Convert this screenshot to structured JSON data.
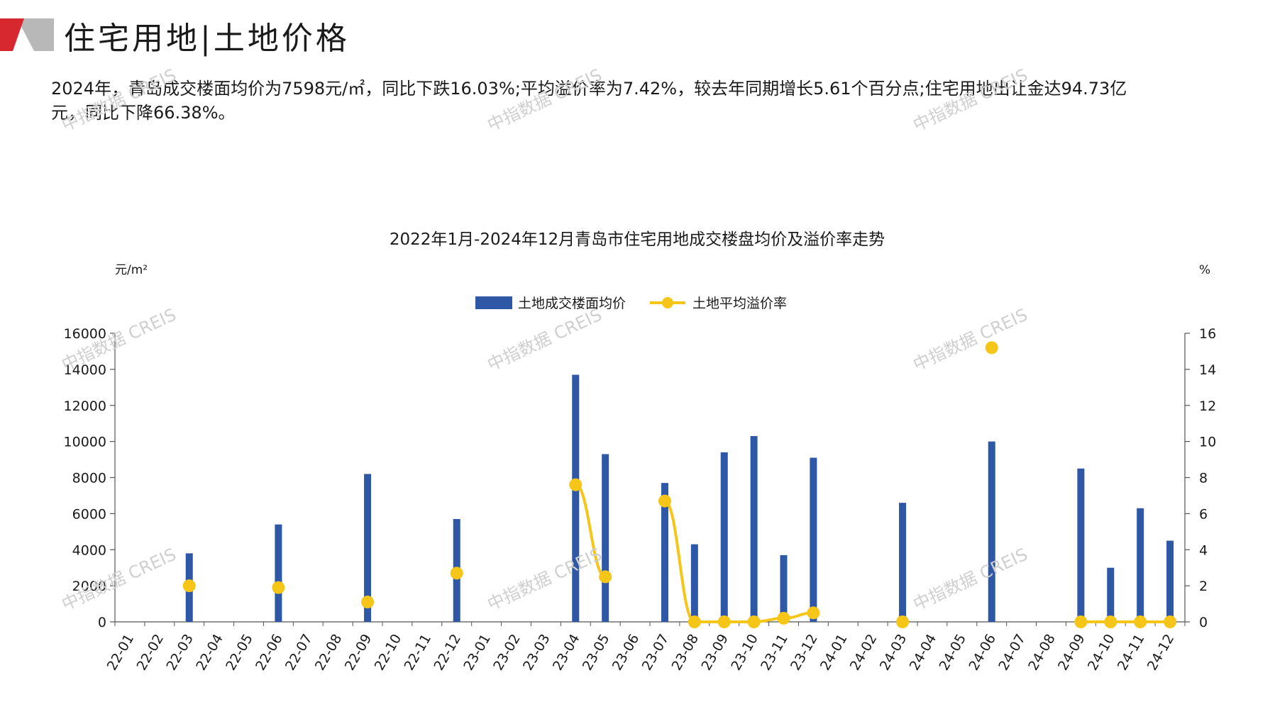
{
  "header": {
    "title": "住宅用地|土地价格",
    "summary_line1": "2024年，青岛成交楼面均价为7598元/㎡，同比下跌16.03%;平均溢价率为7.42%，较去年同期增长5.61个百分点;住宅用地出让金达94.73亿",
    "summary_line2": "元，同比下降66.38%。"
  },
  "watermark": "中指数据 CREIS",
  "colors": {
    "bar": "#2e58a6",
    "line": "#f5c518",
    "deco_red": "#d7282f",
    "deco_gray": "#9a9a9a"
  },
  "chart_data": {
    "type": "bar",
    "title": "2022年1月-2024年12月青岛市住宅用地成交楼盘均价及溢价率走势",
    "left_unit": "元/m²",
    "right_unit": "%",
    "categories": [
      "22-01",
      "22-02",
      "22-03",
      "22-04",
      "22-05",
      "22-06",
      "22-07",
      "22-08",
      "22-09",
      "22-10",
      "22-11",
      "22-12",
      "23-01",
      "23-02",
      "23-03",
      "23-04",
      "23-05",
      "23-06",
      "23-07",
      "23-08",
      "23-09",
      "23-10",
      "23-11",
      "23-12",
      "24-01",
      "24-02",
      "24-03",
      "24-04",
      "24-05",
      "24-06",
      "24-07",
      "24-08",
      "24-09",
      "24-10",
      "24-11",
      "24-12"
    ],
    "series": [
      {
        "name": "土地成交楼面均价",
        "kind": "bar",
        "axis": "left",
        "values": [
          null,
          null,
          3800,
          null,
          null,
          5400,
          null,
          null,
          8200,
          null,
          null,
          5700,
          null,
          null,
          null,
          13700,
          9300,
          null,
          7700,
          4300,
          9400,
          10300,
          3700,
          9100,
          null,
          null,
          6600,
          null,
          null,
          10000,
          null,
          null,
          8500,
          3000,
          6300,
          4500
        ]
      },
      {
        "name": "土地平均溢价率",
        "kind": "line",
        "axis": "right",
        "values": [
          null,
          null,
          2.0,
          null,
          null,
          1.9,
          null,
          null,
          1.1,
          null,
          null,
          2.7,
          null,
          null,
          null,
          7.6,
          2.5,
          null,
          6.7,
          0.0,
          0.0,
          0.0,
          0.2,
          0.5,
          null,
          null,
          0.0,
          null,
          null,
          15.2,
          null,
          null,
          0.0,
          0.0,
          0.0,
          0.0
        ]
      }
    ],
    "y_left": {
      "min": 0,
      "max": 16000,
      "ticks": [
        "0",
        "2000",
        "4000",
        "6000",
        "8000",
        "10000",
        "12000",
        "14000",
        "16000"
      ]
    },
    "y_right": {
      "min": 0,
      "max": 16,
      "ticks": [
        "0",
        "2",
        "4",
        "6",
        "8",
        "10",
        "12",
        "14",
        "16"
      ]
    },
    "legend_position": "top-center",
    "grid": false
  }
}
